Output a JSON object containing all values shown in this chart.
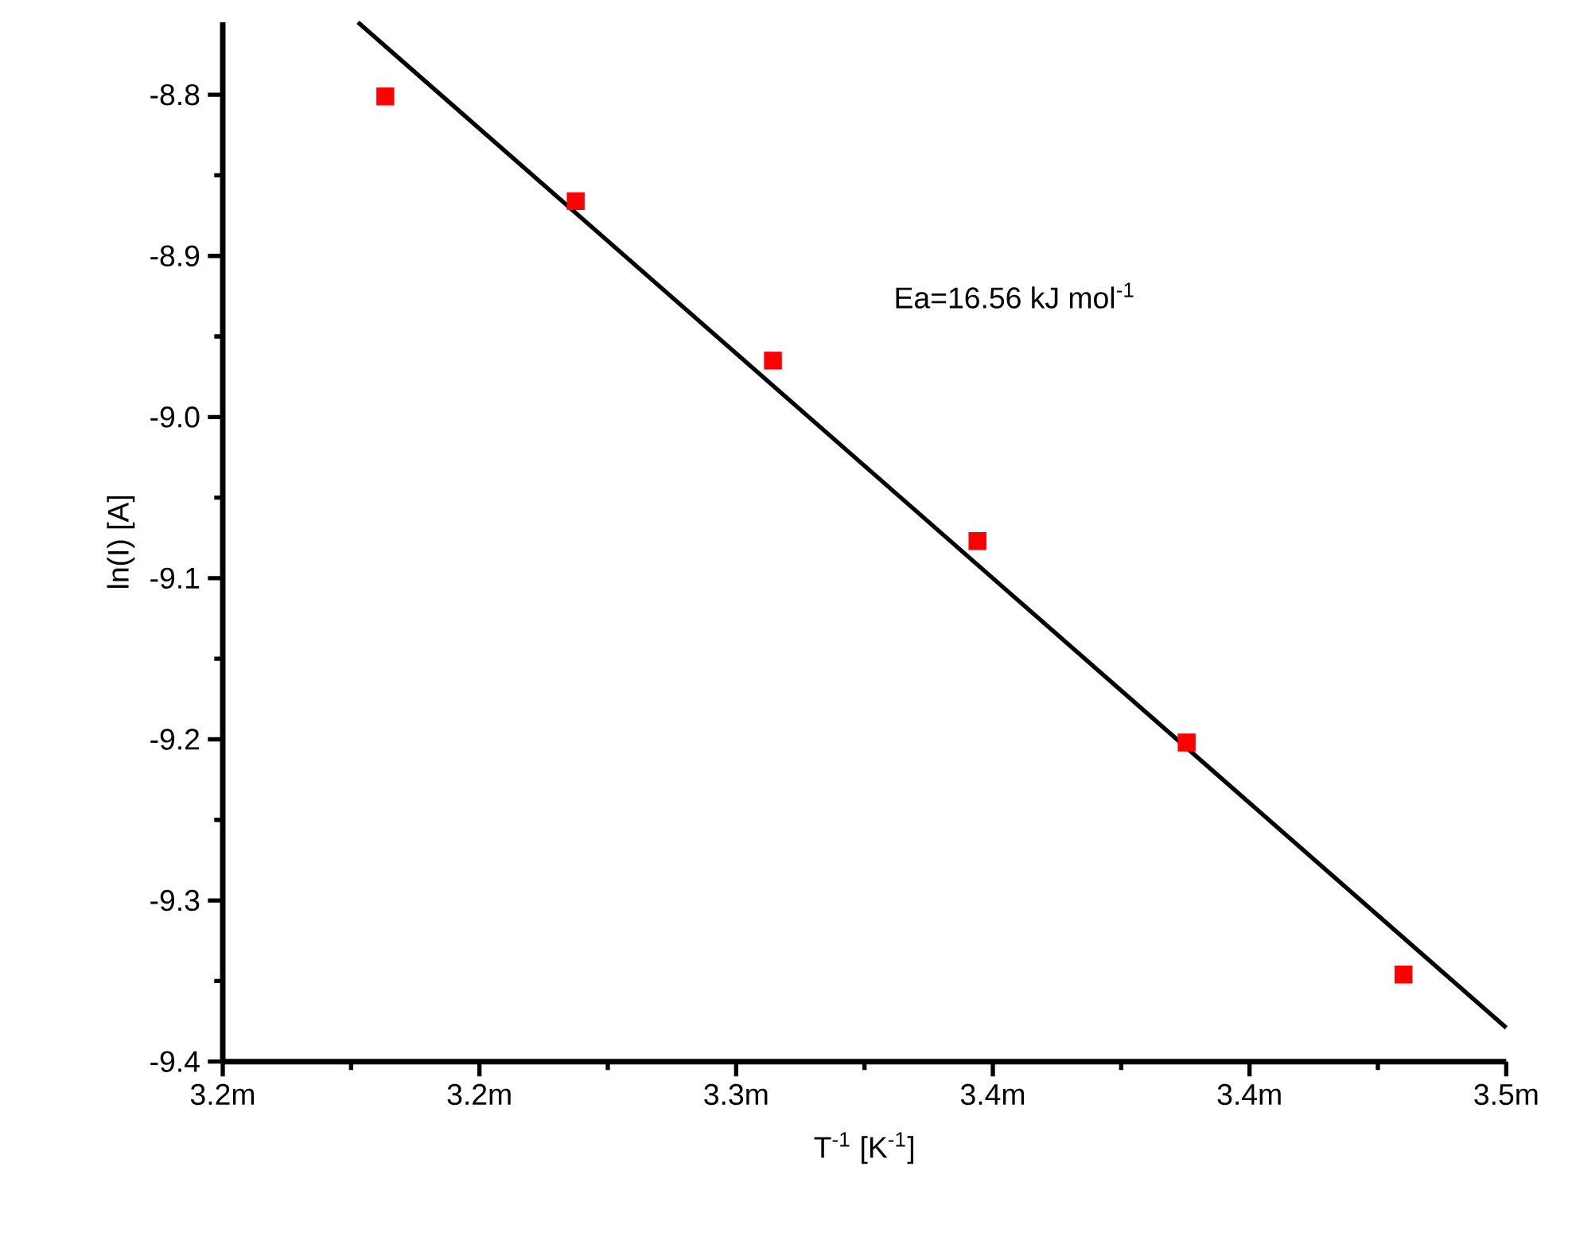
{
  "chart_data": {
    "type": "scatter",
    "xlabel": "T$^{-1}$ [K$^{-1}$]",
    "ylabel": "ln(I) [A]",
    "annotations": [
      "Ea=16.56 kJ mol$^{-1}$"
    ],
    "xlim": [
      3.18,
      3.48
    ],
    "xticks": [
      {
        "value": 3.18,
        "label": "3.2m"
      },
      {
        "value": 3.24,
        "label": "3.2m"
      },
      {
        "value": 3.3,
        "label": "3.3m"
      },
      {
        "value": 3.36,
        "label": "3.4m"
      },
      {
        "value": 3.42,
        "label": "3.4m"
      },
      {
        "value": 3.48,
        "label": "3.5m"
      }
    ],
    "ylim": [
      -9.4,
      -8.755
    ],
    "yticks": [
      -9.4,
      -9.3,
      -9.2,
      -9.1,
      {
        "value": -9.0,
        "label": "-9.0"
      },
      -8.9,
      -8.8
    ],
    "series": [
      {
        "color": "#ff0000",
        "marker": "square",
        "x": [
          3.218,
          3.2625,
          3.3086,
          3.3564,
          3.4053,
          3.456
        ],
        "values": [
          -8.801,
          -8.866,
          -8.965,
          -9.077,
          -9.202,
          -9.346
        ]
      },
      {
        "type": "line",
        "color": "#000000",
        "marker": "none",
        "line_style": "solid",
        "x": [
          3.2116,
          3.48
        ],
        "values": [
          -8.755,
          -9.379
        ]
      }
    ]
  }
}
